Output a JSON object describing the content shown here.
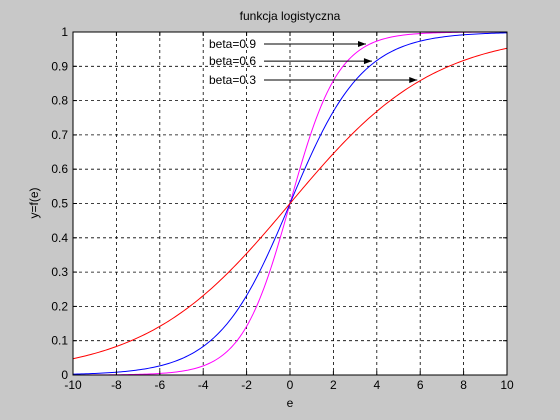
{
  "chart_data": {
    "type": "line",
    "title": "funkcja logistyczna",
    "xlabel": "e",
    "ylabel": "y=f(e)",
    "xlim": [
      -10,
      10
    ],
    "ylim": [
      0,
      1
    ],
    "grid": true,
    "x_ticks": [
      "-10",
      "-8",
      "-6",
      "-4",
      "-2",
      "0",
      "2",
      "4",
      "6",
      "8",
      "10"
    ],
    "y_ticks": [
      "0",
      "0.1",
      "0.2",
      "0.3",
      "0.4",
      "0.5",
      "0.6",
      "0.7",
      "0.8",
      "0.9",
      "1"
    ],
    "x": [
      -10,
      -8,
      -6,
      -4,
      -2,
      0,
      2,
      4,
      6,
      8,
      10
    ],
    "series": [
      {
        "name": "beta=0.9",
        "color": "#ff00ff",
        "values": [
          0.0001,
          0.0007,
          0.0045,
          0.0266,
          0.1419,
          0.5,
          0.8581,
          0.9734,
          0.9955,
          0.9993,
          0.9999
        ]
      },
      {
        "name": "beta=0.6",
        "color": "#0000ff",
        "values": [
          0.0025,
          0.0082,
          0.0266,
          0.0832,
          0.2315,
          0.5,
          0.7685,
          0.9168,
          0.9734,
          0.9918,
          0.9975
        ]
      },
      {
        "name": "beta=0.3",
        "color": "#ff0000",
        "values": [
          0.0474,
          0.0832,
          0.1419,
          0.2315,
          0.3543,
          0.5,
          0.6457,
          0.7685,
          0.8581,
          0.9168,
          0.9526
        ]
      }
    ],
    "annotations": [
      {
        "text": "beta=0.9",
        "series": 0
      },
      {
        "text": "beta=0.6",
        "series": 1
      },
      {
        "text": "beta=0.3",
        "series": 2
      }
    ]
  }
}
